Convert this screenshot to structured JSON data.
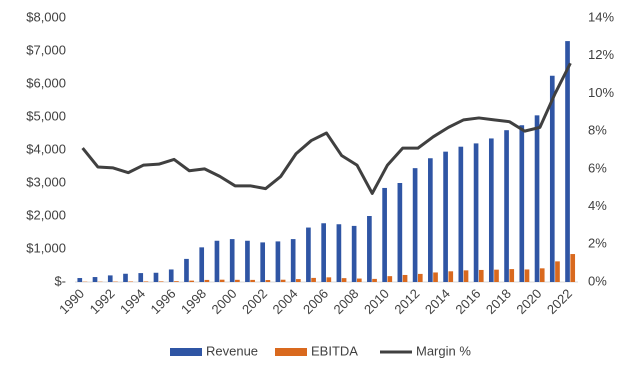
{
  "chart_data": {
    "type": "bar",
    "categories": [
      "1990",
      null,
      "1992",
      null,
      "1994",
      null,
      "1996",
      null,
      "1998",
      null,
      "2000",
      null,
      "2002",
      null,
      "2004",
      null,
      "2006",
      null,
      "2008",
      null,
      "2010",
      null,
      "2012",
      null,
      "2014",
      null,
      "2016",
      null,
      "2018",
      null,
      "2020",
      null,
      "2022"
    ],
    "series": [
      {
        "name": "Revenue",
        "color": "#2f55a4",
        "values": [
          120,
          150,
          200,
          250,
          270,
          280,
          380,
          700,
          1050,
          1250,
          1300,
          1250,
          1200,
          1230,
          1300,
          1650,
          1780,
          1750,
          1700,
          2000,
          2850,
          3000,
          3450,
          3750,
          3950,
          4100,
          4200,
          4350,
          4600,
          4750,
          5050,
          6250,
          7300
        ]
      },
      {
        "name": "EBITDA",
        "color": "#d9691e",
        "values": [
          9,
          9,
          12,
          15,
          17,
          18,
          25,
          41,
          63,
          70,
          66,
          64,
          59,
          69,
          88,
          124,
          141,
          117,
          105,
          94,
          177,
          213,
          245,
          289,
          324,
          353,
          365,
          374,
          391,
          380,
          414,
          625,
          847
        ]
      },
      {
        "name": "Margin %",
        "color": "#404040",
        "type": "line",
        "axis": "y2",
        "values": [
          7.1,
          6.1,
          6.05,
          5.8,
          6.2,
          6.25,
          6.5,
          5.9,
          6.0,
          5.6,
          5.1,
          5.1,
          4.95,
          5.6,
          6.8,
          7.5,
          7.9,
          6.7,
          6.2,
          4.7,
          6.2,
          7.1,
          7.1,
          7.7,
          8.2,
          8.6,
          8.7,
          8.6,
          8.5,
          8.0,
          8.2,
          10.0,
          11.6
        ]
      }
    ],
    "ylim": [
      0,
      8000
    ],
    "yticks": [
      {
        "value": 0,
        "label": "$-"
      },
      {
        "value": 1000,
        "label": "$1,000"
      },
      {
        "value": 2000,
        "label": "$2,000"
      },
      {
        "value": 3000,
        "label": "$3,000"
      },
      {
        "value": 4000,
        "label": "$4,000"
      },
      {
        "value": 5000,
        "label": "$5,000"
      },
      {
        "value": 6000,
        "label": "$6,000"
      },
      {
        "value": 7000,
        "label": "$7,000"
      },
      {
        "value": 8000,
        "label": "$8,000"
      }
    ],
    "y2lim": [
      0,
      14
    ],
    "y2ticks": [
      {
        "value": 0,
        "label": "0%"
      },
      {
        "value": 2,
        "label": "2%"
      },
      {
        "value": 4,
        "label": "4%"
      },
      {
        "value": 6,
        "label": "6%"
      },
      {
        "value": 8,
        "label": "8%"
      },
      {
        "value": 10,
        "label": "10%"
      },
      {
        "value": 12,
        "label": "12%"
      },
      {
        "value": 14,
        "label": "14%"
      }
    ],
    "grid": false,
    "legend": "bottom"
  }
}
